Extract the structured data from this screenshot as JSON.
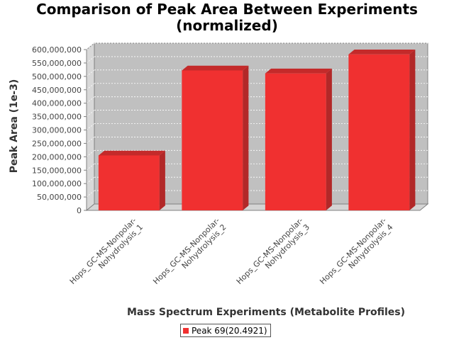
{
  "chart_data": {
    "type": "bar",
    "title": [
      "Comparison of Peak Area Between Experiments",
      "(normalized)"
    ],
    "xlabel": "Mass Spectrum Experiments (Metabolite Profiles)",
    "ylabel": "Peak Area (1e-3)",
    "ylim": [
      0,
      600000000
    ],
    "yticks": [
      0,
      50000000,
      100000000,
      150000000,
      200000000,
      250000000,
      300000000,
      350000000,
      400000000,
      450000000,
      500000000,
      550000000,
      600000000
    ],
    "ytick_labels": [
      "0",
      "50,000,000",
      "100,000,000",
      "150,000,000",
      "200,000,000",
      "250,000,000",
      "300,000,000",
      "350,000,000",
      "400,000,000",
      "450,000,000",
      "500,000,000",
      "550,000,000",
      "600,000,000"
    ],
    "categories": [
      [
        "Hops_GC-MS-Nonpolar-",
        "Nohydrolysis_1"
      ],
      [
        "Hops_GC-MS-Nonpolar-",
        "Nohydrolysis_2"
      ],
      [
        "Hops_GC-MS-Nonpolar-",
        "Nohydrolysis_3"
      ],
      [
        "Hops_GC-MS-Nonpolar-",
        "Nohydrolysis_4"
      ]
    ],
    "series": [
      {
        "name": "Peak 69(20.4921)",
        "color": "#f03030",
        "values": [
          205000000,
          522000000,
          511000000,
          582000000
        ]
      }
    ],
    "grid": true,
    "legend_position": "bottom",
    "style": "3d"
  }
}
